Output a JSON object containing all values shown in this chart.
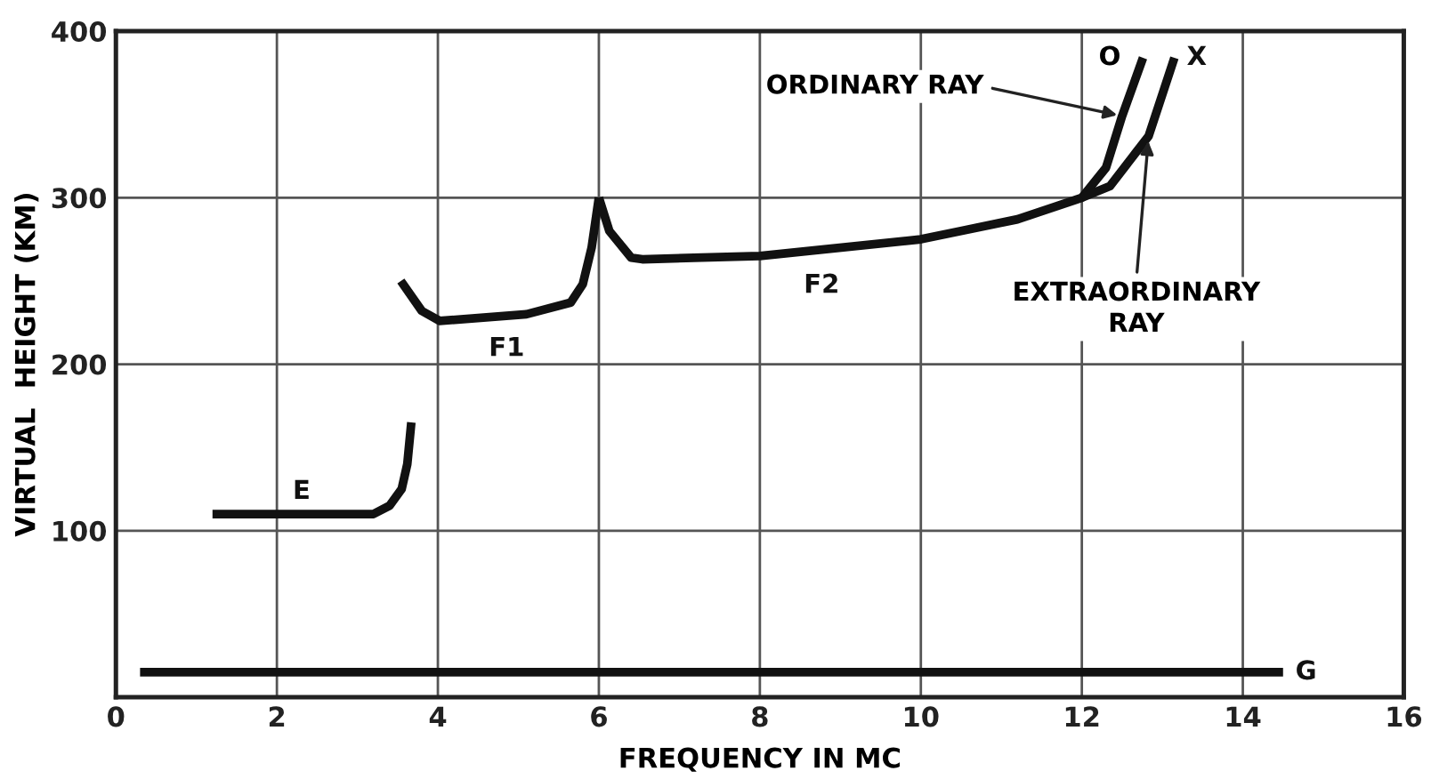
{
  "chart_data": {
    "type": "line",
    "xlabel": "FREQUENCY IN MC",
    "ylabel": "VIRTUAL  HEIGHT (KM)",
    "series": [
      {
        "name": "E",
        "color": "#111111",
        "x": [
          1.2,
          2,
          3.2,
          3.4,
          3.55,
          3.62,
          3.67
        ],
        "values": [
          110,
          110,
          110,
          115,
          125,
          140,
          165
        ]
      },
      {
        "name": "F1",
        "color": "#111111",
        "x": [
          3.54,
          3.8,
          4.02,
          5.1,
          5.65,
          5.8,
          5.91,
          6.0
        ],
        "values": [
          250,
          232,
          226,
          230,
          237,
          248,
          270,
          300
        ]
      },
      {
        "name": "F2",
        "color": "#111111",
        "x": [
          6.0,
          6.13,
          6.4,
          6.54,
          7.28,
          8,
          10,
          11.2,
          12,
          12.3,
          12.5,
          12.76
        ],
        "values": [
          300,
          280,
          264,
          263,
          264,
          265,
          275,
          287,
          300,
          318,
          349,
          384
        ]
      },
      {
        "name": "X",
        "color": "#111111",
        "x": [
          12,
          12.35,
          12.83,
          13.15
        ],
        "values": [
          300,
          307,
          337,
          384
        ]
      },
      {
        "name": "G",
        "color": "#111111",
        "x": [
          0.3,
          14.5
        ],
        "values": [
          15,
          15
        ]
      }
    ],
    "annotations": [
      {
        "text": "O",
        "x": 12.76,
        "y": 384
      },
      {
        "text": "ORDINARY RAY",
        "x": 12.5,
        "y": 349
      },
      {
        "text": "EXTRAORDINARY\nRAY",
        "x": 12.83,
        "y": 337
      }
    ],
    "xlim": [
      0,
      16
    ],
    "ylim": [
      0,
      400
    ],
    "xticks": [
      0,
      2,
      4,
      6,
      8,
      10,
      12,
      14,
      16
    ],
    "yticks": [
      {
        "value": 0,
        "label": null
      },
      100,
      200,
      300,
      400
    ],
    "grid": true,
    "marker": "none",
    "line_style": "solid",
    "legend": false
  }
}
